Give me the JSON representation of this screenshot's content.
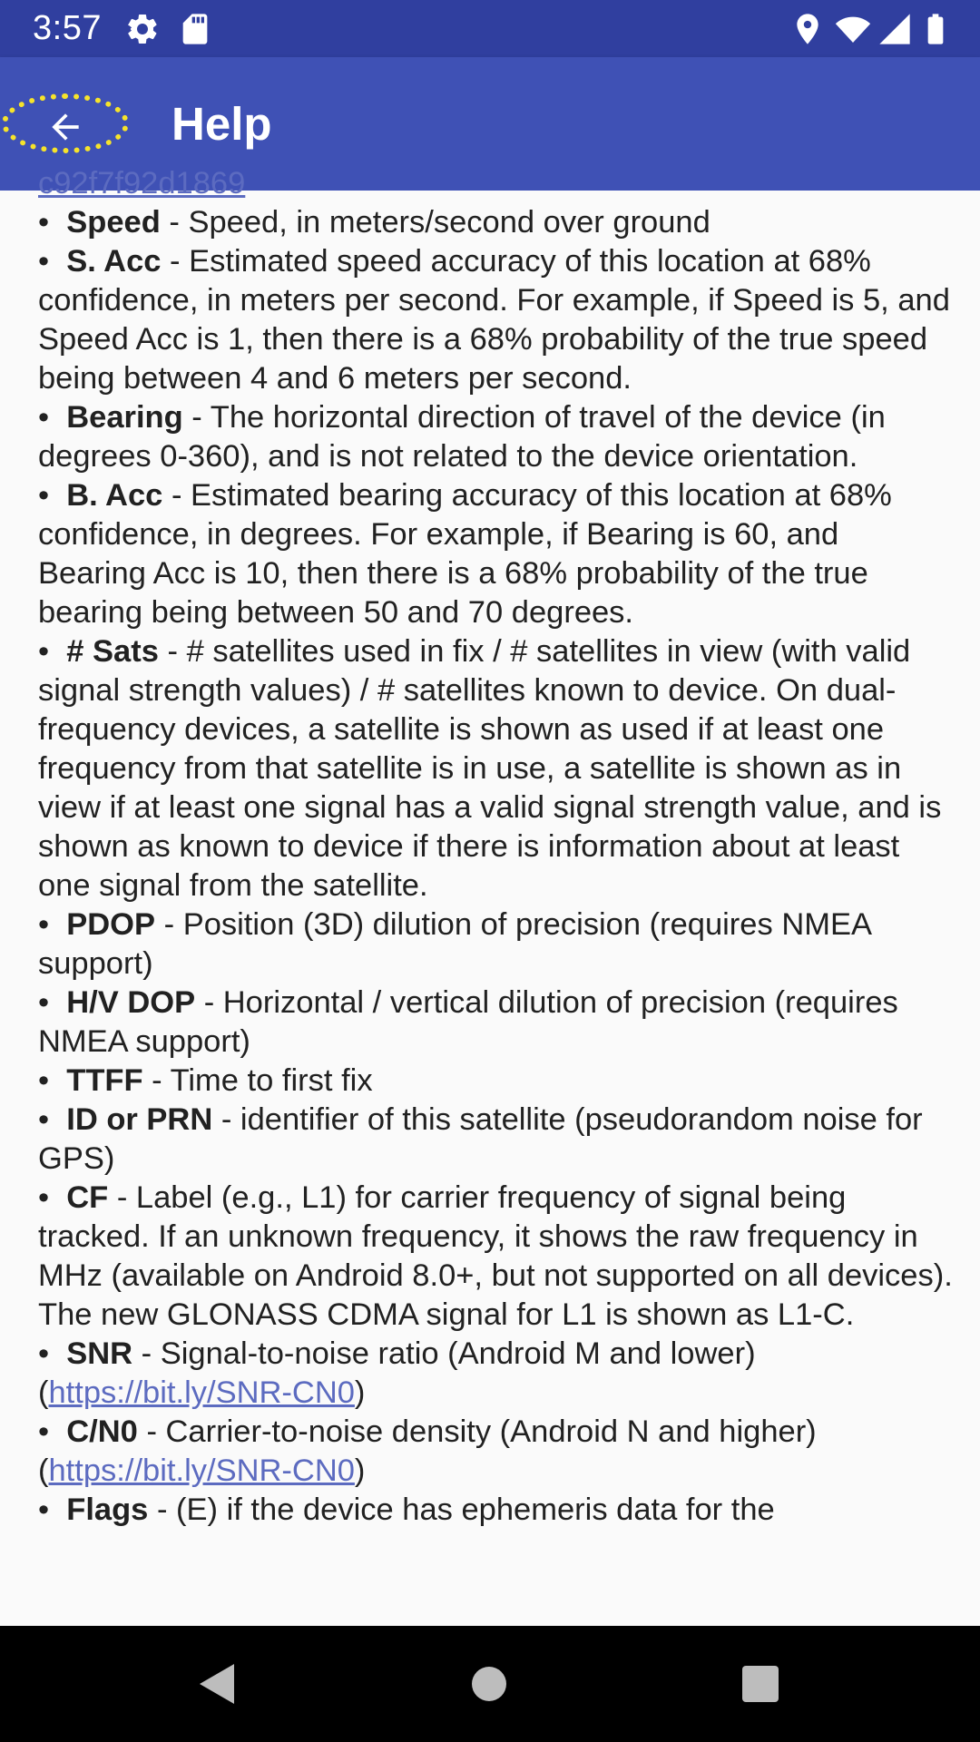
{
  "status_bar": {
    "time": "3:57",
    "icons": [
      "gear-icon",
      "sd-card-icon",
      "location-icon",
      "wifi-icon",
      "signal-icon",
      "battery-icon"
    ]
  },
  "app_bar": {
    "title": "Help",
    "back_icon": "arrow-back-icon"
  },
  "help": {
    "partial_link": "c92f7f92d1869",
    "items": [
      {
        "term": "Speed",
        "desc": " - Speed, in meters/second over ground"
      },
      {
        "term": "S. Acc",
        "desc": " - Estimated speed accuracy of this location at 68% confidence, in meters per second. For example, if Speed is 5, and Speed Acc is 1, then there is a 68% probability of the true speed being between 4 and 6 meters per second."
      },
      {
        "term": "Bearing",
        "desc": " - The horizontal direction of travel of the device (in degrees 0-360), and is not related to the device orientation."
      },
      {
        "term": "B. Acc",
        "desc": " - Estimated bearing accuracy of this location at 68% confidence, in degrees. For example, if Bearing is 60, and Bearing Acc is 10, then there is a 68% probability of the true bearing being between 50 and 70 degrees."
      },
      {
        "term": "# Sats",
        "desc": " - # satellites used in fix / # satellites in view (with valid signal strength values) / # satellites known to device. On dual-frequency devices, a satellite is shown as used if at least one frequency from that satellite is in use, a satellite is shown as in view if at least one signal has a valid signal strength value, and is shown as known to device if there is information about at least one signal from the satellite."
      },
      {
        "term": "PDOP",
        "desc": " - Position (3D) dilution of precision (requires NMEA support)"
      },
      {
        "term": "H/V DOP",
        "desc": " - Horizontal / vertical dilution of precision (requires NMEA support)"
      },
      {
        "term": "TTFF",
        "desc": " - Time to first fix"
      },
      {
        "term": "ID or PRN",
        "desc": " - identifier of this satellite (pseudorandom noise for GPS)"
      },
      {
        "term": "CF",
        "desc": " - Label (e.g., L1) for carrier frequency of signal being tracked. If an unknown frequency, it shows the raw frequency in MHz (available on Android 8.0+, but not supported on all devices). The new GLONASS CDMA signal for L1 is shown as L1-C."
      },
      {
        "term": "SNR",
        "desc": " - Signal-to-noise ratio (Android M and lower) (",
        "link": "https://bit.ly/SNR-CN0",
        "after": ")"
      },
      {
        "term": "C/N0",
        "desc": " - Carrier-to-noise density (Android N and higher) (",
        "link": "https://bit.ly/SNR-CN0",
        "after": ")"
      },
      {
        "term": "Flags",
        "desc": " - (E) if the device has ephemeris data for the"
      }
    ]
  },
  "nav_bar": {
    "back": "nav-back-icon",
    "home": "nav-home-icon",
    "recents": "nav-recents-icon"
  }
}
